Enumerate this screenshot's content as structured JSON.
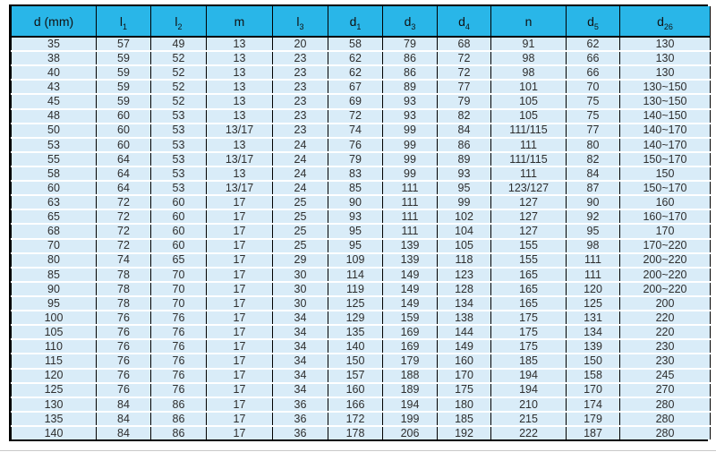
{
  "chart_data": {
    "type": "table",
    "title": "",
    "columns": [
      {
        "label": "d (mm)",
        "base": "d (mm)",
        "sub": ""
      },
      {
        "label": "l1",
        "base": "l",
        "sub": "1"
      },
      {
        "label": "l2",
        "base": "l",
        "sub": "2"
      },
      {
        "label": "m",
        "base": "m",
        "sub": ""
      },
      {
        "label": "l3",
        "base": "l",
        "sub": "3"
      },
      {
        "label": "d1",
        "base": "d",
        "sub": "1"
      },
      {
        "label": "d3",
        "base": "d",
        "sub": "3"
      },
      {
        "label": "d4",
        "base": "d",
        "sub": "4"
      },
      {
        "label": "n",
        "base": "n",
        "sub": ""
      },
      {
        "label": "d5",
        "base": "d",
        "sub": "5"
      },
      {
        "label": "d26",
        "base": "d",
        "sub": "26"
      }
    ],
    "rows": [
      [
        "35",
        "57",
        "49",
        "13",
        "20",
        "58",
        "79",
        "68",
        "91",
        "62",
        "130"
      ],
      [
        "38",
        "59",
        "52",
        "13",
        "23",
        "62",
        "86",
        "72",
        "98",
        "66",
        "130"
      ],
      [
        "40",
        "59",
        "52",
        "13",
        "23",
        "62",
        "86",
        "72",
        "98",
        "66",
        "130"
      ],
      [
        "43",
        "59",
        "52",
        "13",
        "23",
        "67",
        "89",
        "77",
        "101",
        "70",
        "130~150"
      ],
      [
        "45",
        "59",
        "52",
        "13",
        "23",
        "69",
        "93",
        "79",
        "105",
        "75",
        "130~150"
      ],
      [
        "48",
        "60",
        "53",
        "13",
        "23",
        "72",
        "93",
        "82",
        "105",
        "75",
        "140~150"
      ],
      [
        "50",
        "60",
        "53",
        "13/17",
        "23",
        "74",
        "99",
        "84",
        "111/115",
        "77",
        "140~170"
      ],
      [
        "53",
        "60",
        "53",
        "13",
        "24",
        "76",
        "99",
        "86",
        "111",
        "80",
        "140~170"
      ],
      [
        "55",
        "64",
        "53",
        "13/17",
        "24",
        "79",
        "99",
        "89",
        "111/115",
        "82",
        "150~170"
      ],
      [
        "58",
        "64",
        "53",
        "13",
        "24",
        "83",
        "99",
        "93",
        "111",
        "84",
        "150"
      ],
      [
        "60",
        "64",
        "53",
        "13/17",
        "24",
        "85",
        "111",
        "95",
        "123/127",
        "87",
        "150~170"
      ],
      [
        "63",
        "72",
        "60",
        "17",
        "25",
        "90",
        "111",
        "99",
        "127",
        "90",
        "160"
      ],
      [
        "65",
        "72",
        "60",
        "17",
        "25",
        "93",
        "111",
        "102",
        "127",
        "92",
        "160~170"
      ],
      [
        "68",
        "72",
        "60",
        "17",
        "25",
        "95",
        "111",
        "104",
        "127",
        "95",
        "170"
      ],
      [
        "70",
        "72",
        "60",
        "17",
        "25",
        "95",
        "139",
        "105",
        "155",
        "98",
        "170~220"
      ],
      [
        "80",
        "74",
        "65",
        "17",
        "29",
        "109",
        "139",
        "118",
        "155",
        "111",
        "200~220"
      ],
      [
        "85",
        "78",
        "70",
        "17",
        "30",
        "114",
        "149",
        "123",
        "165",
        "111",
        "200~220"
      ],
      [
        "90",
        "78",
        "70",
        "17",
        "30",
        "119",
        "149",
        "128",
        "165",
        "120",
        "200~220"
      ],
      [
        "95",
        "78",
        "70",
        "17",
        "30",
        "125",
        "149",
        "134",
        "165",
        "125",
        "200"
      ],
      [
        "100",
        "76",
        "76",
        "17",
        "34",
        "129",
        "159",
        "138",
        "175",
        "131",
        "220"
      ],
      [
        "105",
        "76",
        "76",
        "17",
        "34",
        "135",
        "169",
        "144",
        "175",
        "134",
        "220"
      ],
      [
        "110",
        "76",
        "76",
        "17",
        "34",
        "140",
        "169",
        "149",
        "175",
        "139",
        "230"
      ],
      [
        "115",
        "76",
        "76",
        "17",
        "34",
        "150",
        "179",
        "160",
        "185",
        "150",
        "230"
      ],
      [
        "120",
        "76",
        "76",
        "17",
        "34",
        "157",
        "188",
        "170",
        "194",
        "158",
        "245"
      ],
      [
        "125",
        "76",
        "76",
        "17",
        "34",
        "160",
        "189",
        "175",
        "194",
        "170",
        "270"
      ],
      [
        "130",
        "84",
        "86",
        "17",
        "36",
        "166",
        "194",
        "180",
        "210",
        "174",
        "280"
      ],
      [
        "135",
        "84",
        "86",
        "17",
        "36",
        "172",
        "199",
        "185",
        "215",
        "179",
        "280"
      ],
      [
        "140",
        "84",
        "86",
        "17",
        "36",
        "178",
        "206",
        "192",
        "222",
        "187",
        "280"
      ]
    ],
    "layout_hints": {
      "grid": "on",
      "header_position": "top"
    }
  },
  "colors": {
    "header_bg": "#29b6e8",
    "header_text": "#111111",
    "row_bg": "#d9ecf8",
    "row_separator": "#ffffff",
    "table_border": "#000000",
    "cell_text": "#2e2e2e"
  }
}
